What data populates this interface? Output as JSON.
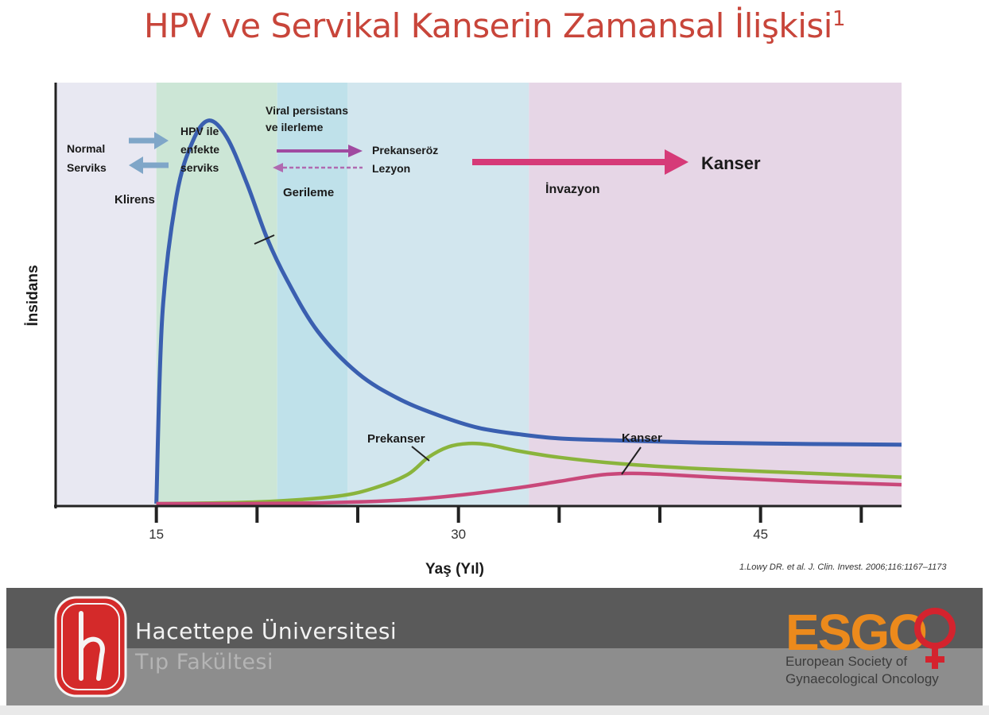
{
  "title": {
    "text": "HPV ve Servikal Kanserin Zamansal İlişkisi",
    "superscript": "1"
  },
  "chart_data": {
    "type": "line",
    "title": "HPV ve Servikal Kanserin Zamansal İlişkisi",
    "xlabel": "Yaş (Yıl)",
    "ylabel": "İnsidans",
    "x_ticks": [
      15,
      30,
      45
    ],
    "xlim": [
      10,
      52
    ],
    "ylim": [
      0,
      100
    ],
    "grid": false,
    "series": [
      {
        "name": "",
        "color": "#3a5fb0",
        "x": [
          15,
          15.3,
          16,
          16.8,
          17.6,
          18.5,
          19.5,
          20.5,
          21.5,
          23,
          25,
          27,
          29,
          31,
          33,
          35,
          38,
          42,
          47,
          52
        ],
        "y": [
          0,
          45,
          73,
          86,
          91,
          87,
          76,
          63,
          53,
          41,
          31,
          25,
          21,
          18,
          16.5,
          15.5,
          15,
          14.5,
          14.2,
          14
        ]
      },
      {
        "name": "Prekanser",
        "color": "#8ab43c",
        "x": [
          15,
          20,
          24,
          26,
          27.5,
          28.5,
          29.5,
          30.5,
          31.5,
          33,
          35,
          38,
          42,
          47,
          52
        ],
        "y": [
          0,
          0.4,
          1.8,
          4,
          7,
          11,
          13.5,
          14.3,
          14,
          12.5,
          11,
          9.5,
          8.3,
          7.3,
          6.3
        ]
      },
      {
        "name": "Kanser",
        "color": "#c9487a",
        "x": [
          15,
          22,
          27,
          30,
          33,
          35,
          37,
          38.5,
          40,
          43,
          47,
          52
        ],
        "y": [
          0,
          0.1,
          0.8,
          2,
          3.8,
          5.3,
          6.8,
          7.2,
          7,
          6.2,
          5.3,
          4.5
        ]
      }
    ],
    "phases": [
      {
        "name": "normal",
        "x0": 10,
        "x1": 15,
        "color": "#e8e8f2"
      },
      {
        "name": "hpv",
        "x0": 15,
        "x1": 21,
        "color": "#cce6d6"
      },
      {
        "name": "persistence",
        "x0": 21,
        "x1": 24.5,
        "color": "#bfe1ea"
      },
      {
        "name": "precancer",
        "x0": 24.5,
        "x1": 33.5,
        "color": "#d2e6ee"
      },
      {
        "name": "cancer",
        "x0": 33.5,
        "x1": 52,
        "color": "#e6d6e6"
      }
    ]
  },
  "stage_labels": {
    "normal": [
      "Normal",
      "Serviks"
    ],
    "hpv": [
      "HPV ile",
      "enfekte",
      "serviks"
    ],
    "clearance": "Klirens",
    "persistence": [
      "Viral persistans",
      "ve ilerleme"
    ],
    "regression": "Gerileme",
    "precancer_lesion": [
      "Prekanseröz",
      "Lezyon"
    ],
    "invasion": "İnvazyon",
    "cancer": "Kanser"
  },
  "citation": "1.Lowy DR. et al. J. Clin. Invest. 2006;116:1167–1173",
  "footer": {
    "university": "Hacettepe Üniversitesi",
    "faculty": "Tıp Fakültesi",
    "esgo": "ESGO",
    "esgo_sub": [
      "European Society of",
      "Gynaecological Oncology"
    ]
  },
  "colors": {
    "title": "#c8453a",
    "arrow_blue": "#7fa6c8",
    "arrow_purple": "#a04aa0",
    "arrow_magenta": "#d63a78",
    "esgo_orange": "#ec8a1c",
    "esgo_red": "#d4232e"
  }
}
